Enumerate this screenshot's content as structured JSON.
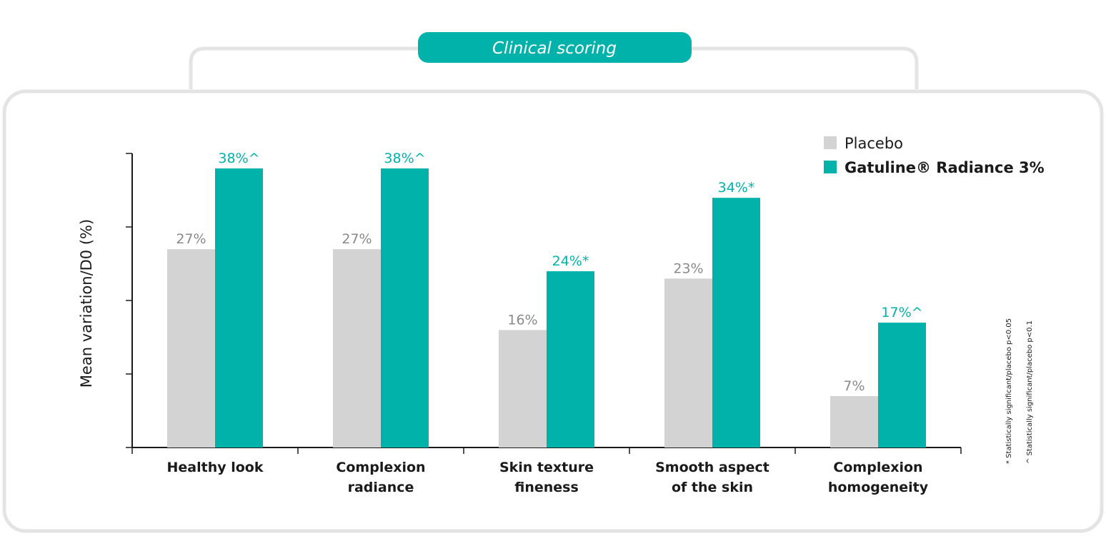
{
  "header": {
    "title": "Clinical scoring"
  },
  "footnotes": {
    "star": "* Statistically significant/placebo p<0.05",
    "caret": "^ Statistically significant/placebo p<0.1"
  },
  "colors": {
    "placebo": "#d3d3d3",
    "gatuline": "#00b2a9",
    "accent": "#00b2a9"
  },
  "chart_data": {
    "type": "bar",
    "title": "",
    "xlabel": "",
    "ylabel": "Mean variation/D0 (%)",
    "ylim": [
      0,
      40
    ],
    "grid": false,
    "legend_position": "top-right",
    "categories": [
      [
        "Healthy look"
      ],
      [
        "Complexion",
        "radiance"
      ],
      [
        "Skin texture",
        "fineness"
      ],
      [
        "Smooth aspect",
        "of the skin"
      ],
      [
        "Complexion",
        "homogeneity"
      ]
    ],
    "series": [
      {
        "name": "Placebo",
        "values": [
          27,
          27,
          16,
          23,
          7
        ],
        "labels": [
          "27%",
          "27%",
          "16%",
          "23%",
          "7%"
        ]
      },
      {
        "name": "Gatuline® Radiance 3%",
        "values": [
          38,
          38,
          24,
          34,
          17
        ],
        "labels": [
          "38%^",
          "38%^",
          "24%*",
          "34%*",
          "17%^"
        ]
      }
    ]
  }
}
